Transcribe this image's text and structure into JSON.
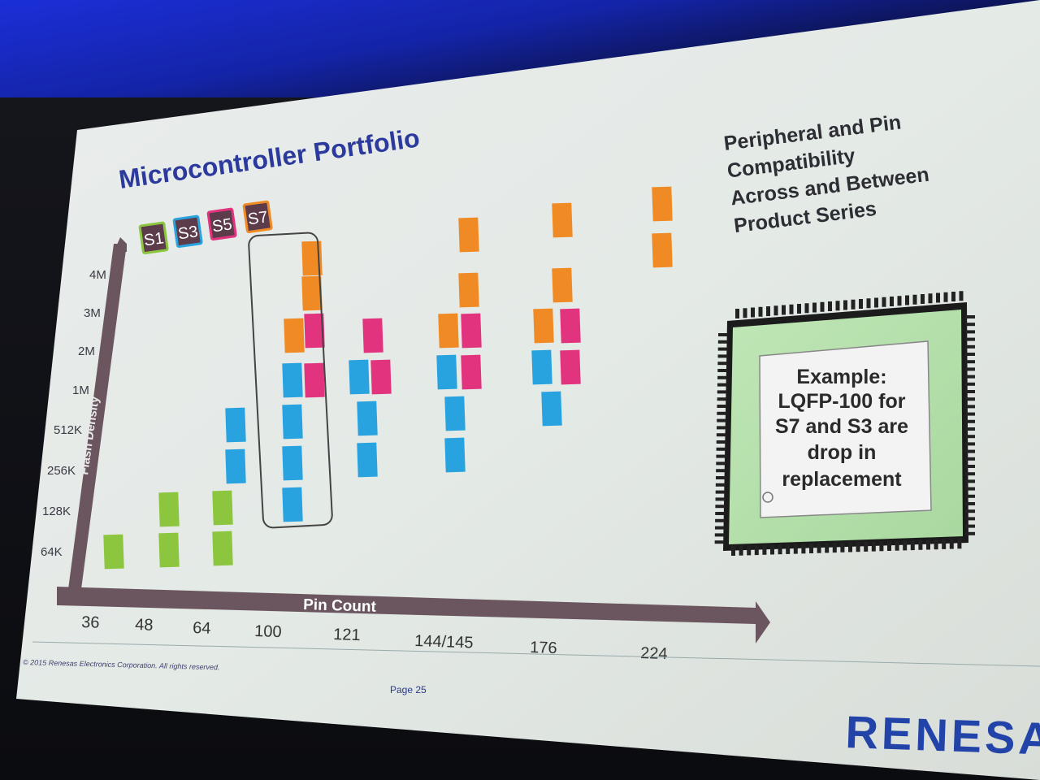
{
  "slide": {
    "title": "Microcontroller Portfolio",
    "footer_copyright": "© 2015 Renesas Electronics Corporation. All rights reserved.",
    "page": "Page 25",
    "logo": "RENESA"
  },
  "legend": [
    {
      "label": "S1",
      "color": "#8cc63f",
      "border": "#8cc63f"
    },
    {
      "label": "S3",
      "color": "#29a3e0",
      "border": "#29a3e0"
    },
    {
      "label": "S5",
      "color": "#e2337f",
      "border": "#e2337f"
    },
    {
      "label": "S7",
      "color": "#f08a24",
      "border": "#f08a24"
    }
  ],
  "y_axis": {
    "label": "Flash Density",
    "ticks": [
      "4M",
      "3M",
      "2M",
      "1M",
      "512K",
      "256K",
      "128K",
      "64K"
    ]
  },
  "x_axis": {
    "label": "Pin Count",
    "ticks": [
      "36",
      "48",
      "64",
      "100",
      "121",
      "144/145",
      "176",
      "224"
    ]
  },
  "side_text": {
    "line1": "Peripheral and Pin",
    "line2": "Compatibility",
    "line3": "Across and Between",
    "line4": "Product Series"
  },
  "example_box": {
    "line1": "Example:",
    "line2": "LQFP-100 for",
    "line3": "S7 and S3 are",
    "line4": "drop in",
    "line5": "replacement"
  },
  "chart_data": {
    "type": "heatmap",
    "title": "Microcontroller Portfolio",
    "xlabel": "Pin Count",
    "ylabel": "Flash Density",
    "categories_x": [
      "36",
      "48",
      "64",
      "100",
      "121",
      "144/145",
      "176",
      "224"
    ],
    "categories_y": [
      "64K",
      "128K",
      "256K",
      "512K",
      "1M",
      "2M",
      "3M",
      "4M"
    ],
    "series": [
      {
        "name": "S1",
        "cells": [
          [
            "36",
            "64K"
          ],
          [
            "48",
            "64K"
          ],
          [
            "48",
            "128K"
          ],
          [
            "64",
            "64K"
          ],
          [
            "64",
            "128K"
          ]
        ]
      },
      {
        "name": "S3",
        "cells": [
          [
            "64",
            "256K"
          ],
          [
            "64",
            "512K"
          ],
          [
            "100",
            "128K"
          ],
          [
            "100",
            "256K"
          ],
          [
            "100",
            "512K"
          ],
          [
            "100",
            "1M"
          ],
          [
            "121",
            "256K"
          ],
          [
            "121",
            "512K"
          ],
          [
            "121",
            "1M"
          ],
          [
            "144/145",
            "256K"
          ],
          [
            "144/145",
            "512K"
          ],
          [
            "144/145",
            "1M"
          ],
          [
            "176",
            "512K"
          ],
          [
            "176",
            "1M"
          ]
        ]
      },
      {
        "name": "S5",
        "cells": [
          [
            "100",
            "1M"
          ],
          [
            "100",
            "2M"
          ],
          [
            "121",
            "1M"
          ],
          [
            "121",
            "2M"
          ],
          [
            "144/145",
            "1M"
          ],
          [
            "144/145",
            "2M"
          ],
          [
            "176",
            "1M"
          ],
          [
            "176",
            "2M"
          ]
        ]
      },
      {
        "name": "S7",
        "cells": [
          [
            "100",
            "2M"
          ],
          [
            "100",
            "3M"
          ],
          [
            "100",
            "4M"
          ],
          [
            "144/145",
            "2M"
          ],
          [
            "144/145",
            "3M"
          ],
          [
            "144/145",
            "4M"
          ],
          [
            "176",
            "2M"
          ],
          [
            "176",
            "3M"
          ],
          [
            "176",
            "4M"
          ],
          [
            "224",
            "3M"
          ],
          [
            "224",
            "4M"
          ]
        ]
      }
    ]
  }
}
